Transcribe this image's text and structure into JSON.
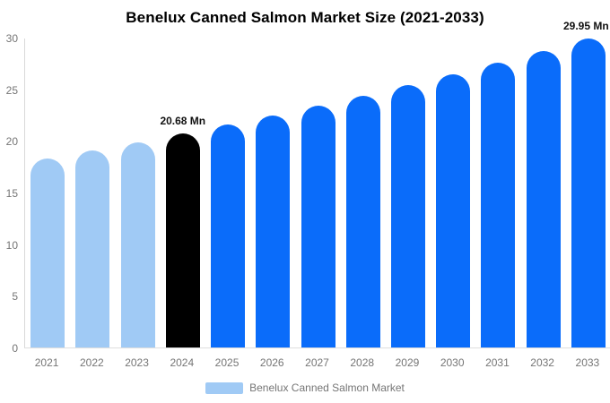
{
  "title": "Benelux Canned Salmon Market Size (2021-2033)",
  "legend": {
    "label": "Benelux Canned Salmon Market"
  },
  "colors": {
    "bar_light": "#A0CAF5",
    "bar_primary": "#0A6CFA",
    "bar_highlight": "#000000",
    "axis_line": "#D9D9D9",
    "tick_text": "#757575",
    "title_text": "#000000",
    "annotation_text": "#111111"
  },
  "chart_data": {
    "type": "bar",
    "title": "Benelux Canned Salmon Market Size (2021-2033)",
    "xlabel": "",
    "ylabel": "",
    "unit": "Mn",
    "categories": [
      "2021",
      "2022",
      "2023",
      "2024",
      "2025",
      "2026",
      "2027",
      "2028",
      "2029",
      "2030",
      "2031",
      "2032",
      "2033"
    ],
    "values": [
      18.28,
      19.05,
      19.85,
      20.68,
      21.55,
      22.45,
      23.4,
      24.38,
      25.4,
      26.47,
      27.58,
      28.74,
      29.95
    ],
    "bar_styles": [
      "light",
      "light",
      "light",
      "highlight",
      "primary",
      "primary",
      "primary",
      "primary",
      "primary",
      "primary",
      "primary",
      "primary",
      "primary"
    ],
    "annotations": [
      {
        "category": "2024",
        "label": "20.68 Mn"
      },
      {
        "category": "2033",
        "label": "29.95 Mn"
      }
    ],
    "ylim": [
      0,
      30
    ],
    "y_ticks": [
      0,
      5,
      10,
      15,
      20,
      25,
      30
    ],
    "grid": false,
    "legend_entries": [
      "Benelux Canned Salmon Market"
    ],
    "legend_position": "bottom"
  }
}
